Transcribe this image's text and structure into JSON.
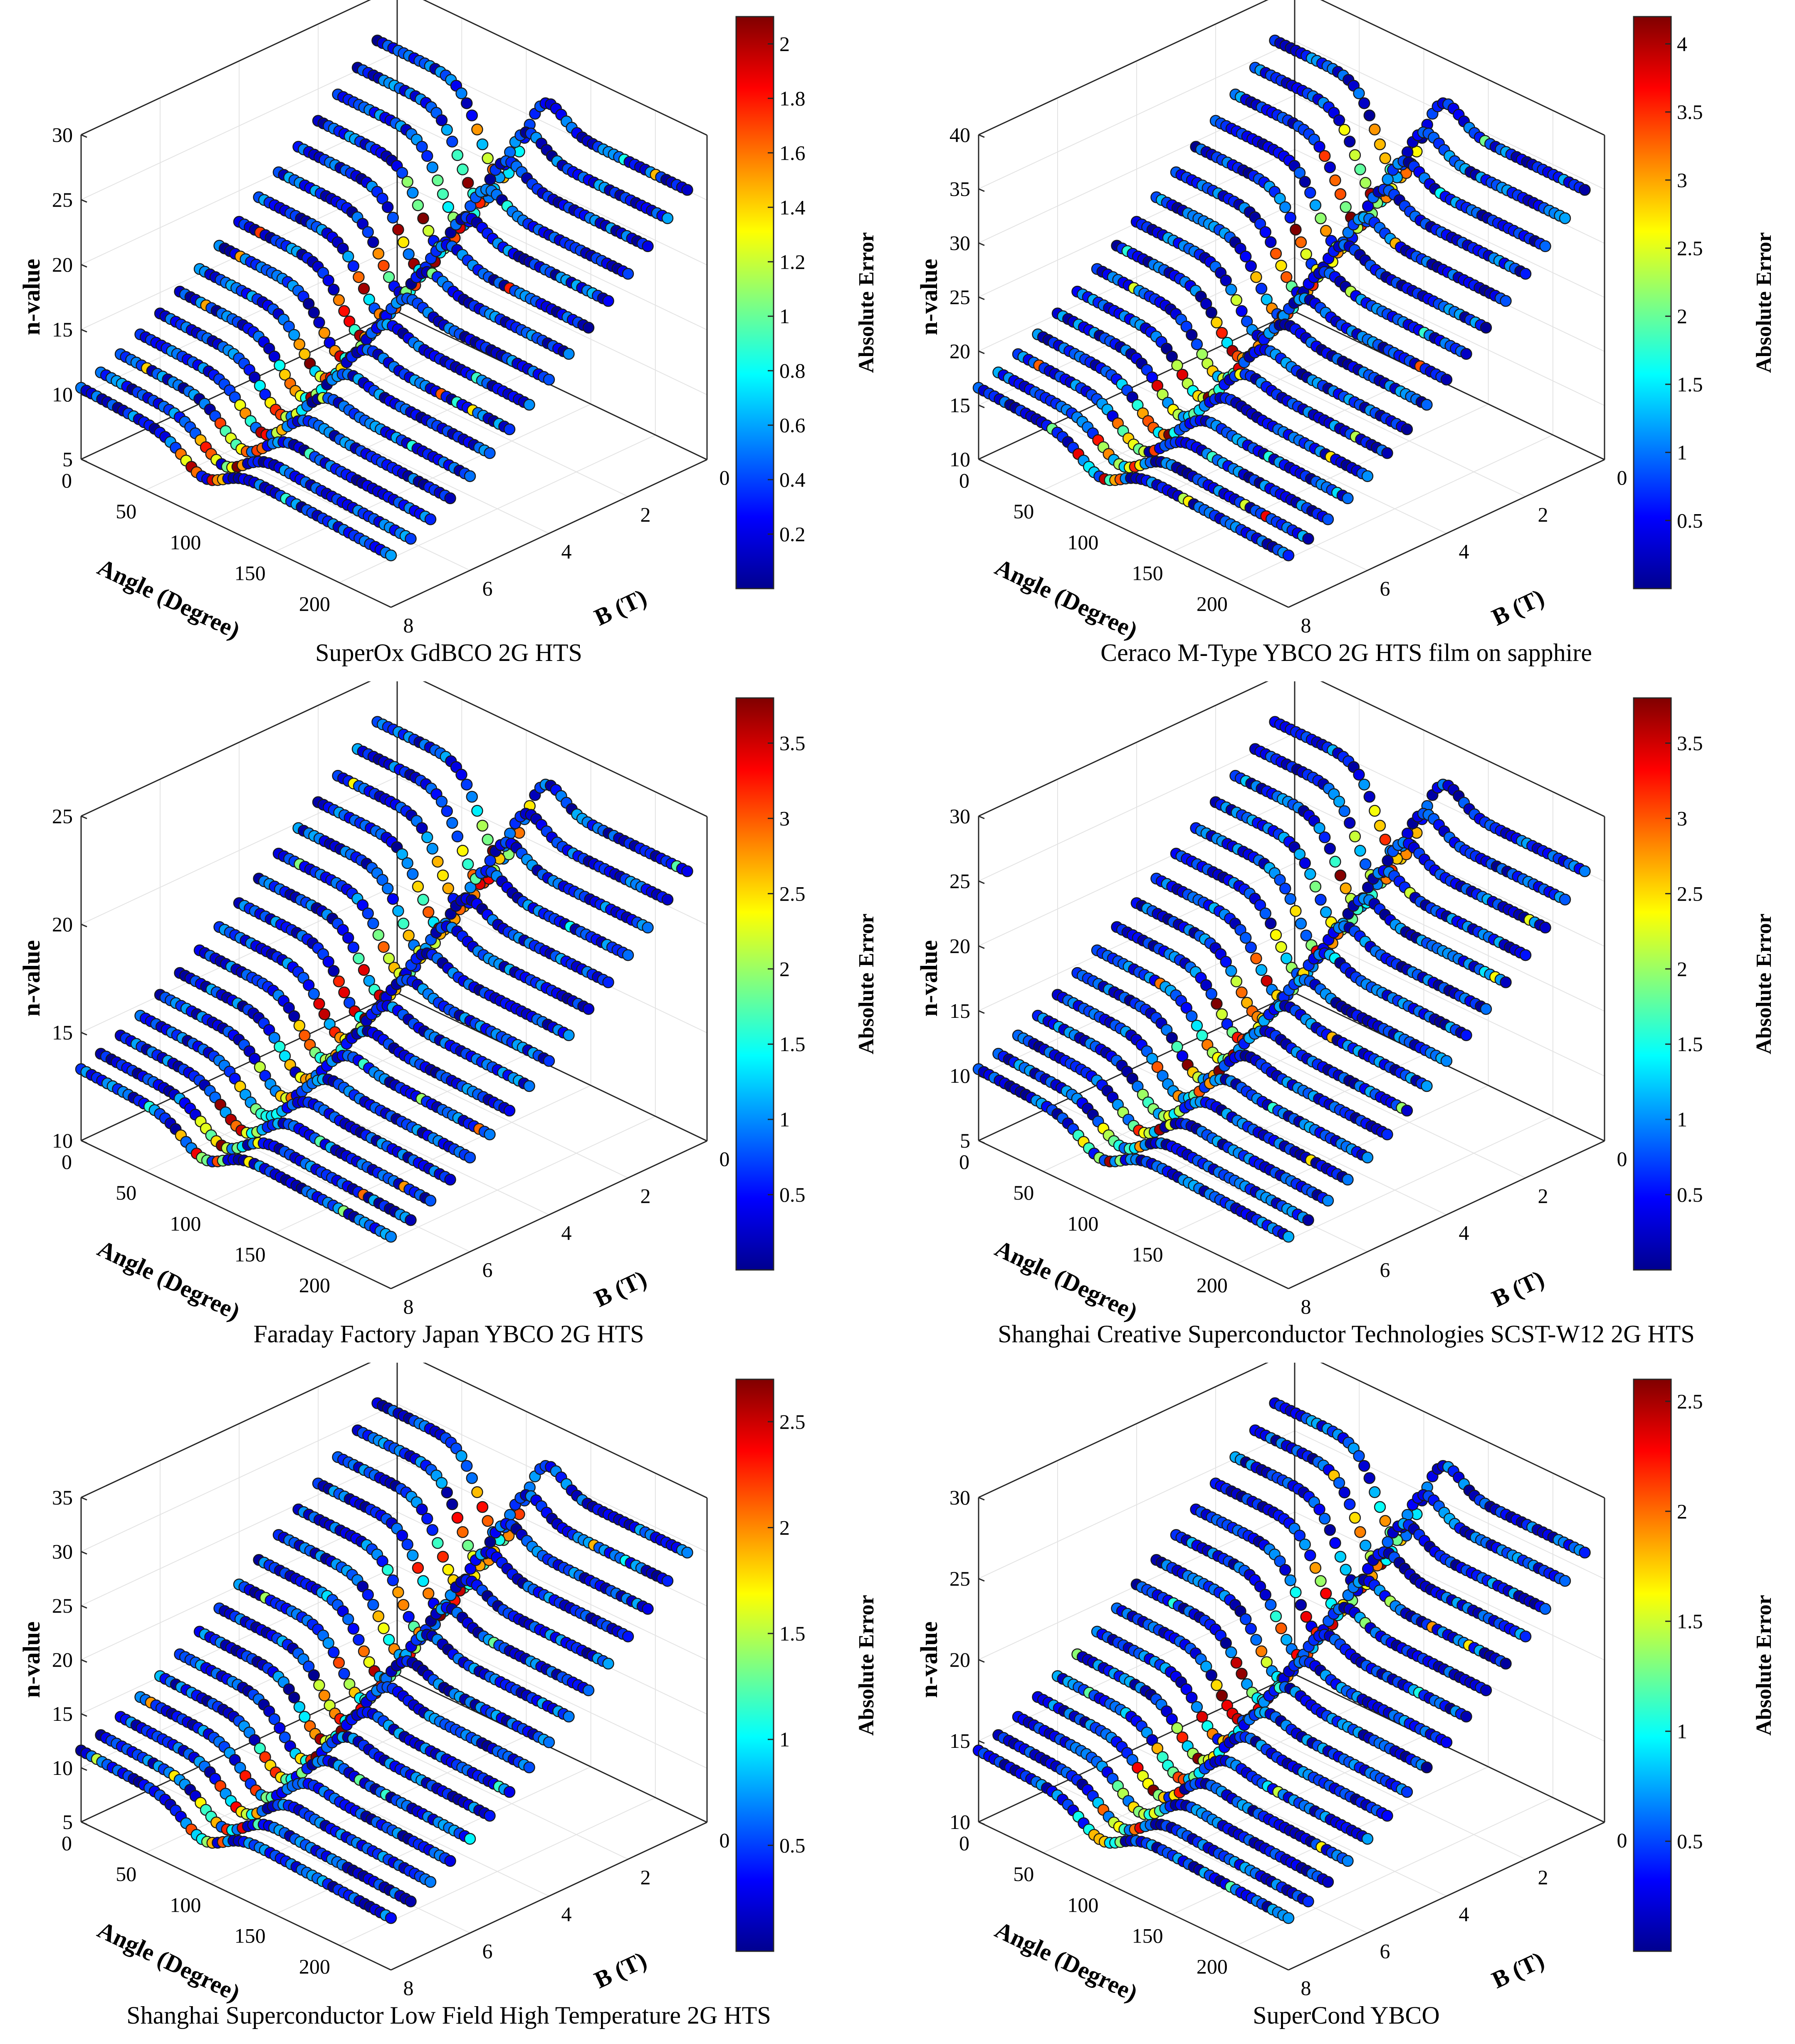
{
  "figure": {
    "colormap": [
      "#00008f",
      "#0000ff",
      "#0080ff",
      "#00ffff",
      "#80ff80",
      "#ffff00",
      "#ff8000",
      "#ff0000",
      "#800000"
    ],
    "z_label": "n-value",
    "x_label": "Angle (Degree)",
    "y_label": "B (T)",
    "colorbar_label": "Absolute Error"
  },
  "chart_data": [
    {
      "type": "scatter",
      "title": "SuperOx GdBCO 2G HTS",
      "xlabel": "Angle (Degree)",
      "ylabel": "B (T)",
      "zlabel": "n-value",
      "xlim": [
        0,
        240
      ],
      "ylim": [
        0,
        8
      ],
      "zlim": [
        5,
        30
      ],
      "x_ticks": [
        "0",
        "50",
        "100",
        "150",
        "200"
      ],
      "y_ticks": [
        "0",
        "2",
        "4",
        "6",
        "8"
      ],
      "z_ticks": [
        "5",
        "10",
        "15",
        "20",
        "25",
        "30"
      ],
      "colorbar": {
        "label": "Absolute Error",
        "range": [
          0,
          2.1
        ],
        "ticks": [
          "0.2",
          "0.4",
          "0.6",
          "0.8",
          "1",
          "1.2",
          "1.4",
          "1.6",
          "1.8",
          "2"
        ]
      },
      "series_fields_T": [
        0.5,
        1,
        1.5,
        2,
        2.5,
        3,
        3.5,
        4,
        4.5,
        5,
        5.5,
        6,
        6.5,
        7,
        7.5,
        8
      ],
      "n_peak_at_0T": 30,
      "n_at_8T": 11
    },
    {
      "type": "scatter",
      "title": "Ceraco M-Type YBCO 2G HTS film on sapphire",
      "xlabel": "Angle (Degree)",
      "ylabel": "B (T)",
      "zlabel": "n-value",
      "xlim": [
        0,
        240
      ],
      "ylim": [
        0,
        8
      ],
      "zlim": [
        10,
        40
      ],
      "x_ticks": [
        "0",
        "50",
        "100",
        "150",
        "200"
      ],
      "y_ticks": [
        "0",
        "2",
        "4",
        "6",
        "8"
      ],
      "z_ticks": [
        "10",
        "15",
        "20",
        "25",
        "30",
        "35",
        "40"
      ],
      "colorbar": {
        "label": "Absolute Error",
        "range": [
          0,
          4.2
        ],
        "ticks": [
          "0.5",
          "1",
          "1.5",
          "2",
          "2.5",
          "3",
          "3.5",
          "4"
        ]
      },
      "series_fields_T": [
        0.5,
        1,
        1.5,
        2,
        2.5,
        3,
        3.5,
        4,
        4.5,
        5,
        5.5,
        6,
        6.5,
        7,
        7.5,
        8
      ],
      "n_peak_at_0T": 40,
      "n_at_8T": 11
    },
    {
      "type": "scatter",
      "title": "Faraday Factory Japan YBCO 2G HTS",
      "xlabel": "Angle (Degree)",
      "ylabel": "B (T)",
      "zlabel": "n-value",
      "xlim": [
        0,
        240
      ],
      "ylim": [
        0,
        8
      ],
      "zlim": [
        10,
        25
      ],
      "x_ticks": [
        "0",
        "50",
        "100",
        "150",
        "200"
      ],
      "y_ticks": [
        "0",
        "2",
        "4",
        "6",
        "8"
      ],
      "z_ticks": [
        "10",
        "15",
        "20",
        "25"
      ],
      "colorbar": {
        "label": "Absolute Error",
        "range": [
          0,
          3.8
        ],
        "ticks": [
          "0.5",
          "1",
          "1.5",
          "2",
          "2.5",
          "3",
          "3.5"
        ]
      },
      "series_fields_T": [
        0.5,
        1,
        1.5,
        2,
        2.5,
        3,
        3.5,
        4,
        4.5,
        5,
        5.5,
        6,
        6.5,
        7,
        7.5,
        8
      ],
      "n_peak_at_0T": 25,
      "n_at_8T": 10
    },
    {
      "type": "scatter",
      "title": "Shanghai Creative Superconductor Technologies SCST-W12 2G HTS",
      "xlabel": "Angle (Degree)",
      "ylabel": "B (T)",
      "zlabel": "n-value",
      "xlim": [
        0,
        240
      ],
      "ylim": [
        0,
        8
      ],
      "zlim": [
        5,
        30
      ],
      "x_ticks": [
        "0",
        "50",
        "100",
        "150",
        "200"
      ],
      "y_ticks": [
        "0",
        "2",
        "4",
        "6",
        "8"
      ],
      "z_ticks": [
        "5",
        "10",
        "15",
        "20",
        "25",
        "30"
      ],
      "colorbar": {
        "label": "Absolute Error",
        "range": [
          0,
          3.8
        ],
        "ticks": [
          "0.5",
          "1",
          "1.5",
          "2",
          "2.5",
          "3",
          "3.5"
        ]
      },
      "series_fields_T": [
        0.5,
        1,
        1.5,
        2,
        2.5,
        3,
        3.5,
        4,
        4.5,
        5,
        5.5,
        6,
        6.5,
        7,
        7.5,
        8
      ],
      "n_peak_at_0T": 30,
      "n_at_8T": 8
    },
    {
      "type": "scatter",
      "title": "Shanghai Superconductor Low Field High Temperature 2G HTS",
      "xlabel": "Angle (Degree)",
      "ylabel": "B (T)",
      "zlabel": "n-value",
      "xlim": [
        0,
        240
      ],
      "ylim": [
        0,
        8
      ],
      "zlim": [
        5,
        35
      ],
      "x_ticks": [
        "0",
        "50",
        "100",
        "150",
        "200"
      ],
      "y_ticks": [
        "0",
        "2",
        "4",
        "6",
        "8"
      ],
      "z_ticks": [
        "5",
        "10",
        "15",
        "20",
        "25",
        "30",
        "35"
      ],
      "colorbar": {
        "label": "Absolute Error",
        "range": [
          0,
          2.7
        ],
        "ticks": [
          "0.5",
          "1",
          "1.5",
          "2",
          "2.5"
        ]
      },
      "series_fields_T": [
        0.5,
        1,
        1.5,
        2,
        2.5,
        3,
        3.5,
        4,
        4.5,
        5,
        5.5,
        6,
        6.5,
        7,
        7.5,
        8
      ],
      "n_peak_at_0T": 35,
      "n_at_8T": 9
    },
    {
      "type": "scatter",
      "title": "SuperCond YBCO",
      "xlabel": "Angle (Degree)",
      "ylabel": "B (T)",
      "zlabel": "n-value",
      "xlim": [
        0,
        240
      ],
      "ylim": [
        0,
        8
      ],
      "zlim": [
        10,
        30
      ],
      "x_ticks": [
        "0",
        "50",
        "100",
        "150",
        "200"
      ],
      "y_ticks": [
        "0",
        "2",
        "4",
        "6",
        "8"
      ],
      "z_ticks": [
        "10",
        "15",
        "20",
        "25",
        "30"
      ],
      "colorbar": {
        "label": "Absolute Error",
        "range": [
          0,
          2.6
        ],
        "ticks": [
          "0.5",
          "1",
          "1.5",
          "2",
          "2.5"
        ]
      },
      "series_fields_T": [
        0.5,
        1,
        1.5,
        2,
        2.5,
        3,
        3.5,
        4,
        4.5,
        5,
        5.5,
        6,
        6.5,
        7,
        7.5,
        8
      ],
      "n_peak_at_0T": 30,
      "n_at_8T": 10
    }
  ]
}
